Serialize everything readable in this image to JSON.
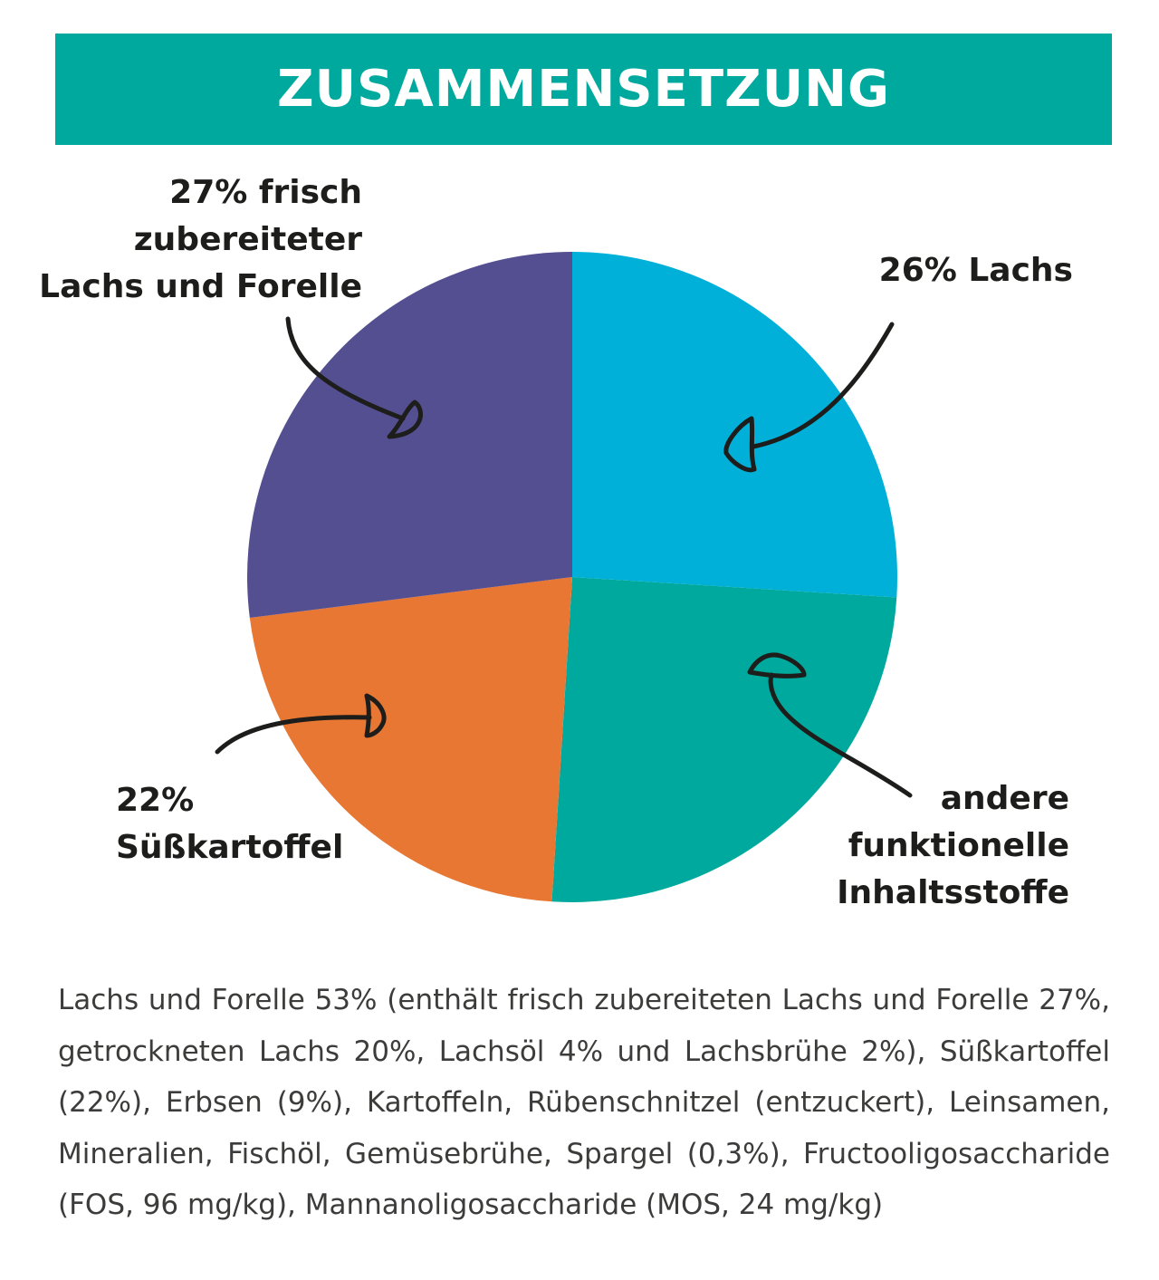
{
  "header": {
    "title": "ZUSAMMENSETZUNG"
  },
  "colors": {
    "banner": "#00a99d",
    "slice_lachs": "#00b0d8",
    "slice_andere": "#00a99d",
    "slice_suesskartoffel": "#e77733",
    "slice_lachs_forelle": "#544f90"
  },
  "chart_data": {
    "type": "pie",
    "title": "ZUSAMMENSETZUNG",
    "slices": [
      {
        "label": "26% Lachs",
        "value": 26,
        "color": "#00b0d8"
      },
      {
        "label": "andere funktionelle Inhaltsstoffe",
        "value": 25,
        "color": "#00a99d"
      },
      {
        "label": "22% Süßkartoffel",
        "value": 22,
        "color": "#e77733"
      },
      {
        "label": "27% frisch zubereiteter Lachs und Forelle",
        "value": 27,
        "color": "#544f90"
      }
    ]
  },
  "labels": {
    "lachs_forelle": [
      "27% frisch",
      "zubereiteter",
      "Lachs und Forelle"
    ],
    "lachs": [
      "26% Lachs"
    ],
    "suesskartoffel": [
      "22%",
      "Süßkartoffel"
    ],
    "andere": [
      "andere",
      "funktionelle",
      "Inhaltsstoffe"
    ]
  },
  "ingredients": "Lachs und Forelle 53% (enthält frisch zubereiteten Lachs und Forelle 27%, getrockneten Lachs 20%, Lachsöl 4% und Lachsbrühe 2%), Süßkartoffel (22%), Erbsen (9%), Kartoffeln, Rübenschnitzel (entzuckert), Leinsamen, Mineralien, Fischöl, Gemüsebrühe, Spargel (0,3%), Fructooligosaccharide (FOS, 96 mg/kg), Mannanoligosaccharide (MOS, 24 mg/kg)"
}
